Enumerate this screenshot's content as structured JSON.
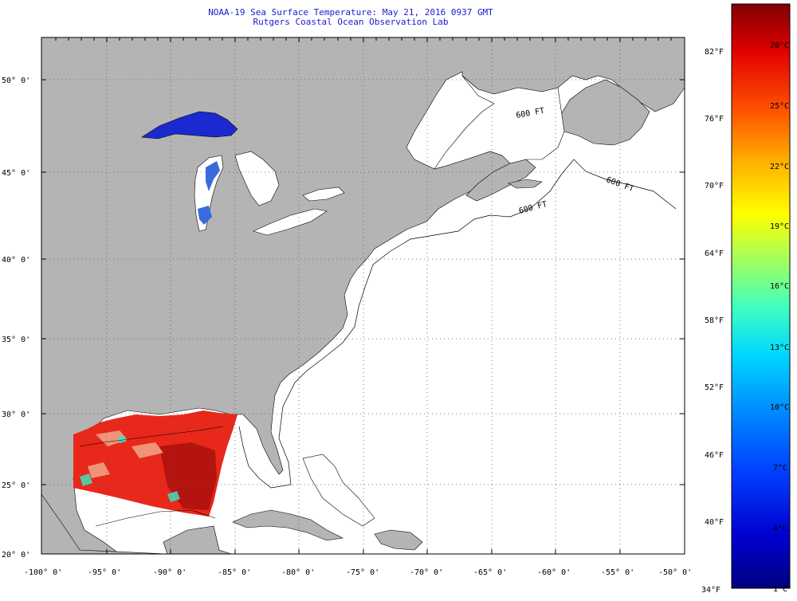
{
  "header": {
    "title_line1": "NOAA-19 Sea Surface Temperature:  May 21, 2016 0937 GMT",
    "title_line2": "Rutgers Coastal Ocean Observation Lab"
  },
  "map": {
    "lon_labels": [
      "-100° 0'",
      "-95° 0'",
      "-90° 0'",
      "-85° 0'",
      "-80° 0'",
      "-75° 0'",
      "-70° 0'",
      "-65° 0'",
      "-60° 0'",
      "-55° 0'",
      "-50° 0'"
    ],
    "lat_labels": [
      "50° 0'",
      "45° 0'",
      "40° 0'",
      "35° 0'",
      "30° 0'",
      "25° 0'",
      "20° 0'"
    ],
    "contour_labels": [
      "600 FT",
      "600 FT",
      "600 FT"
    ],
    "colors": {
      "land": "#b4b4b4",
      "ocean": "#ffffff",
      "gulf_sst": "#e8281a",
      "lake_superior": "#1a2ad0",
      "lake_michigan": "#3a6ae0"
    }
  },
  "colorbar": {
    "fahrenheit_labels": [
      "82°F",
      "76°F",
      "70°F",
      "64°F",
      "58°F",
      "52°F",
      "46°F",
      "40°F",
      "34°F"
    ],
    "celsius_labels": [
      "28°C",
      "25°C",
      "22°C",
      "19°C",
      "16°C",
      "13°C",
      "10°C",
      "7°C",
      "4°C",
      "1°C"
    ],
    "colors": [
      "#00007f",
      "#0000d0",
      "#0040ff",
      "#0090ff",
      "#00d8ff",
      "#40ffc0",
      "#a0ff60",
      "#ffff00",
      "#ffb000",
      "#ff5000",
      "#e00000",
      "#800000"
    ]
  }
}
